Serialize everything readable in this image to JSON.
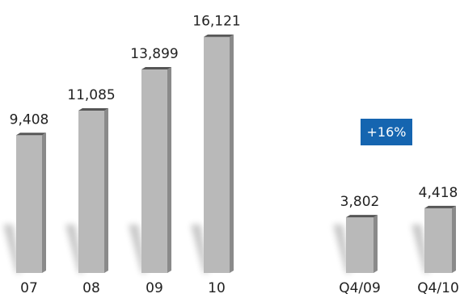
{
  "chart_data": [
    {
      "type": "bar",
      "categories": [
        "07",
        "08",
        "09",
        "10"
      ],
      "values": [
        9408,
        11085,
        13899,
        16121
      ],
      "value_labels": [
        "9,408",
        "11,085",
        "13,899",
        "16,121"
      ],
      "grid": false,
      "bar_color": "#b9b9b9"
    },
    {
      "type": "bar",
      "categories": [
        "Q4/09",
        "Q4/10"
      ],
      "values": [
        3802,
        4418
      ],
      "value_labels": [
        "3,802",
        "4,418"
      ],
      "grid": false,
      "bar_color": "#b9b9b9",
      "badge": {
        "text": "+16%",
        "color": "#1565b0"
      }
    }
  ]
}
